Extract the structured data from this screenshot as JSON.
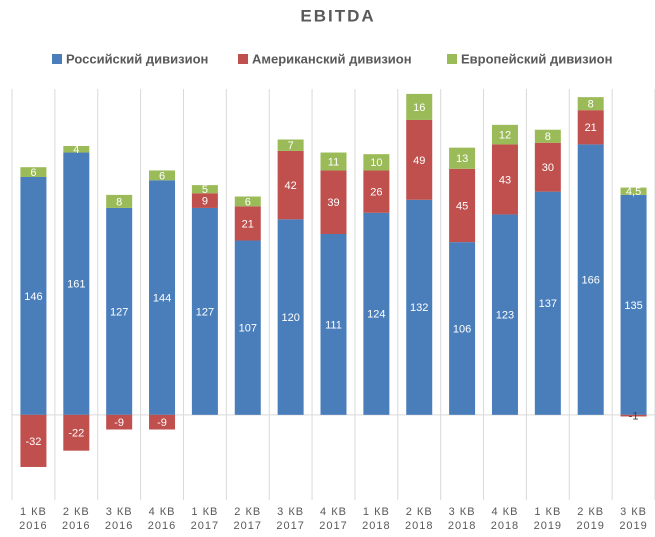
{
  "chart_data": {
    "type": "stacked_bar",
    "title": "EBITDA",
    "categories": [
      "1 КВ 2016",
      "2 КВ 2016",
      "3 КВ 2016",
      "4 КВ 2016",
      "1 КВ 2017",
      "2 КВ 2017",
      "3 КВ 2017",
      "4 КВ 2017",
      "1 КВ 2018",
      "2 КВ 2018",
      "3 КВ 2018",
      "4 КВ 2018",
      "1 КВ 2019",
      "2 КВ 2019",
      "3 КВ 2019"
    ],
    "series": [
      {
        "name": "Российский дивизион",
        "color": "#4a7ebb",
        "values": [
          146,
          161,
          127,
          144,
          127,
          107,
          120,
          111,
          124,
          132,
          106,
          123,
          137,
          166,
          135
        ]
      },
      {
        "name": "Американский дивизион",
        "color": "#c0504d",
        "values": [
          -32,
          -22,
          -9,
          -9,
          9,
          21,
          42,
          39,
          26,
          49,
          45,
          43,
          30,
          21,
          -1
        ]
      },
      {
        "name": "Европейский дивизион",
        "color": "#9bbb59",
        "values": [
          6,
          4,
          8,
          6,
          5,
          6,
          7,
          11,
          10,
          16,
          13,
          12,
          8,
          8,
          4.5
        ],
        "value_labels": [
          "6",
          "4",
          "8",
          "6",
          "5",
          "6",
          "7",
          "11",
          "10",
          "16",
          "13",
          "12",
          "8",
          "8",
          "4,5"
        ]
      }
    ],
    "ylim": [
      -40,
      200
    ],
    "legend": "top"
  }
}
